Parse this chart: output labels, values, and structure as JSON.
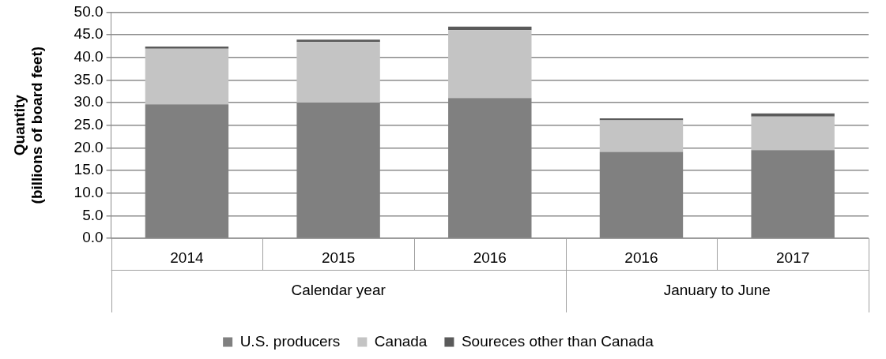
{
  "chart_data": {
    "type": "bar",
    "stacked": true,
    "ylabel": "Quantity\n(billions of board feet)",
    "categories": [
      "2014",
      "2015",
      "2016",
      "2016",
      "2017"
    ],
    "annotations": [
      "Calendar year",
      "January to June"
    ],
    "series": [
      {
        "name": "U.S. producers",
        "color": "#808080",
        "values": [
          29.6,
          30.0,
          31.0,
          19.1,
          19.5
        ]
      },
      {
        "name": "Canada",
        "color": "#c4c4c4",
        "values": [
          12.3,
          13.4,
          15.0,
          7.0,
          7.4
        ]
      },
      {
        "name": "Soureces other than Canada",
        "color": "#5a5a5a",
        "values": [
          0.5,
          0.5,
          0.8,
          0.4,
          0.7
        ]
      }
    ],
    "ylim": [
      0,
      50
    ],
    "yticks": [
      {
        "value": 0,
        "label": "0.0"
      },
      {
        "value": 5,
        "label": "5.0"
      },
      {
        "value": 10,
        "label": "10.0"
      },
      {
        "value": 15,
        "label": "15.0"
      },
      {
        "value": 20,
        "label": "20.0"
      },
      {
        "value": 25,
        "label": "25.0"
      },
      {
        "value": 30,
        "label": "30.0"
      },
      {
        "value": 35,
        "label": "35.0"
      },
      {
        "value": 40,
        "label": "40.0"
      },
      {
        "value": 45,
        "label": "45.0"
      },
      {
        "value": 50,
        "label": "50.0"
      }
    ],
    "grid": "y",
    "legend": "bottom"
  }
}
